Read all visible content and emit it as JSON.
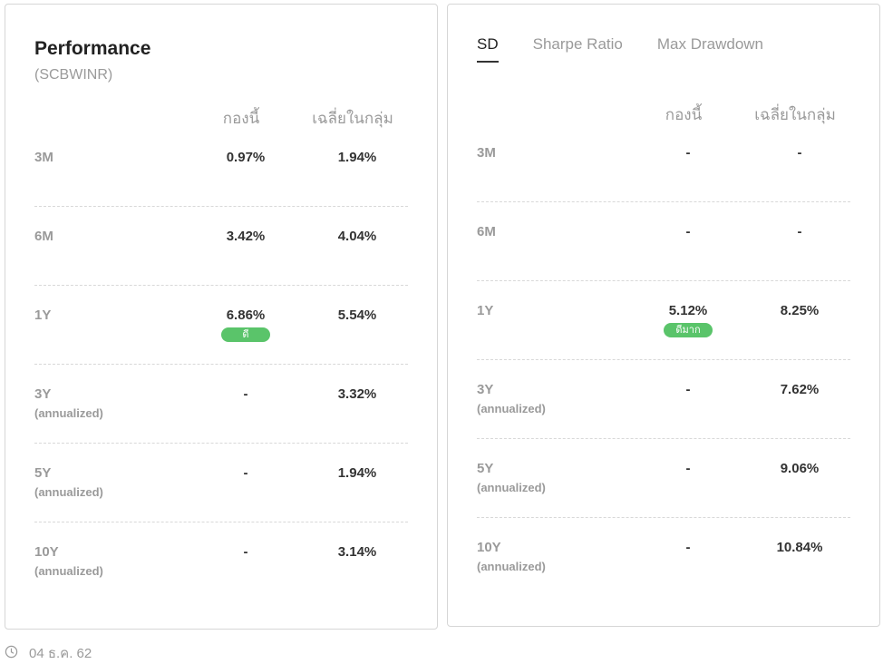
{
  "performance": {
    "title": "Performance",
    "subtitle": "(SCBWINR)",
    "col_fund": "กองนี้",
    "col_avg": "เฉลี่ยในกลุ่ม",
    "rows": [
      {
        "label": "3M",
        "sub": "",
        "fund": "0.97%",
        "avg": "1.94%",
        "badge": ""
      },
      {
        "label": "6M",
        "sub": "",
        "fund": "3.42%",
        "avg": "4.04%",
        "badge": ""
      },
      {
        "label": "1Y",
        "sub": "",
        "fund": "6.86%",
        "avg": "5.54%",
        "badge": "ดี"
      },
      {
        "label": "3Y",
        "sub": "(annualized)",
        "fund": "-",
        "avg": "3.32%",
        "badge": ""
      },
      {
        "label": "5Y",
        "sub": "(annualized)",
        "fund": "-",
        "avg": "1.94%",
        "badge": ""
      },
      {
        "label": "10Y",
        "sub": "(annualized)",
        "fund": "-",
        "avg": "3.14%",
        "badge": ""
      }
    ]
  },
  "risk": {
    "tabs": [
      "SD",
      "Sharpe Ratio",
      "Max Drawdown"
    ],
    "active_tab": "SD",
    "col_fund": "กองนี้",
    "col_avg": "เฉลี่ยในกลุ่ม",
    "rows": [
      {
        "label": "3M",
        "sub": "",
        "fund": "-",
        "avg": "-",
        "badge": ""
      },
      {
        "label": "6M",
        "sub": "",
        "fund": "-",
        "avg": "-",
        "badge": ""
      },
      {
        "label": "1Y",
        "sub": "",
        "fund": "5.12%",
        "avg": "8.25%",
        "badge": "ดีมาก"
      },
      {
        "label": "3Y",
        "sub": "(annualized)",
        "fund": "-",
        "avg": "7.62%",
        "badge": ""
      },
      {
        "label": "5Y",
        "sub": "(annualized)",
        "fund": "-",
        "avg": "9.06%",
        "badge": ""
      },
      {
        "label": "10Y",
        "sub": "(annualized)",
        "fund": "-",
        "avg": "10.84%",
        "badge": ""
      }
    ]
  },
  "footer": {
    "icon": "clock-icon",
    "date": "04 ธ.ค. 62"
  },
  "colors": {
    "badge": "#5ac46a"
  }
}
